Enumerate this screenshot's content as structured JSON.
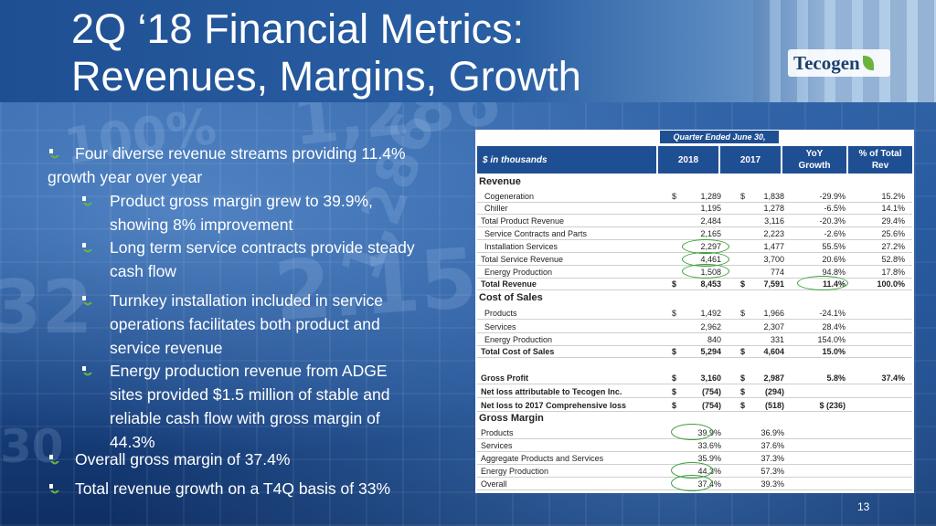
{
  "title": {
    "line1": "2Q ‘18 Financial Metrics:",
    "line2": "Revenues, Margins, Growth"
  },
  "logo": {
    "text": "Tecogen"
  },
  "bullets": [
    {
      "text": "Four diverse revenue streams providing 11.4%\ngrowth year over year",
      "level": 1
    },
    {
      "text": "Product gross margin grew to 39.9%,\nshowing 8% improvement",
      "level": 2
    },
    {
      "text": "Long term service contracts provide steady\ncash flow",
      "level": 2
    },
    {
      "text": "Turnkey installation included in service\noperations facilitates both product and\nservice revenue",
      "level": 2
    },
    {
      "text": "Energy production revenue from ADGE\nsites provided $1.5 million of stable and\nreliable cash flow with gross margin of\n44.3%",
      "level": 2
    },
    {
      "text": "Overall gross margin of 37.4%",
      "level": 1
    },
    {
      "text": "Total revenue growth on a T4Q basis of 33%",
      "level": 1
    }
  ],
  "table": {
    "quarter_header": "Quarter Ended June 30,",
    "columns": [
      "$ in thousands",
      "2018",
      "2017",
      "YoY\nGrowth",
      "% of Total\nRev"
    ],
    "sections": {
      "revenue": "Revenue",
      "cost_of_sales": "Cost of Sales",
      "gross_margin": "Gross Margin"
    },
    "revenue_rows": [
      {
        "label": "Cogeneration",
        "d1": "$",
        "y2018": "1,289",
        "d2": "$",
        "y2017": "1,838",
        "yoy": "-29.9%",
        "pct": "15.2%"
      },
      {
        "label": "Chiller",
        "d1": "",
        "y2018": "1,195",
        "d2": "",
        "y2017": "1,278",
        "yoy": "-6.5%",
        "pct": "14.1%"
      },
      {
        "label": "Total Product Revenue",
        "d1": "",
        "y2018": "2,484",
        "d2": "",
        "y2017": "3,116",
        "yoy": "-20.3%",
        "pct": "29.4%"
      },
      {
        "label": "Service Contracts and Parts",
        "d1": "",
        "y2018": "2,165",
        "d2": "",
        "y2017": "2,223",
        "yoy": "-2.6%",
        "pct": "25.6%"
      },
      {
        "label": "Installation Services",
        "d1": "",
        "y2018": "2,297",
        "d2": "",
        "y2017": "1,477",
        "yoy": "55.5%",
        "pct": "27.2%"
      },
      {
        "label": "Total Service Revenue",
        "d1": "",
        "y2018": "4,461",
        "d2": "",
        "y2017": "3,700",
        "yoy": "20.6%",
        "pct": "52.8%"
      },
      {
        "label": "Energy Production",
        "d1": "",
        "y2018": "1,508",
        "d2": "",
        "y2017": "774",
        "yoy": "94.8%",
        "pct": "17.8%"
      },
      {
        "label": "Total Revenue",
        "d1": "$",
        "y2018": "8,453",
        "d2": "$",
        "y2017": "7,591",
        "yoy": "11.4%",
        "pct": "100.0%",
        "bold": true
      }
    ],
    "cost_rows": [
      {
        "label": "Products",
        "d1": "$",
        "y2018": "1,492",
        "d2": "$",
        "y2017": "1,966",
        "yoy": "-24.1%",
        "pct": ""
      },
      {
        "label": "Services",
        "d1": "",
        "y2018": "2,962",
        "d2": "",
        "y2017": "2,307",
        "yoy": "28.4%",
        "pct": ""
      },
      {
        "label": "Energy Production",
        "d1": "",
        "y2018": "840",
        "d2": "",
        "y2017": "331",
        "yoy": "154.0%",
        "pct": ""
      },
      {
        "label": "Total Cost of Sales",
        "d1": "$",
        "y2018": "5,294",
        "d2": "$",
        "y2017": "4,604",
        "yoy": "15.0%",
        "pct": "",
        "bold": true
      }
    ],
    "profit_rows": [
      {
        "label": "Gross Profit",
        "d1": "$",
        "y2018": "3,160",
        "d2": "$",
        "y2017": "2,987",
        "yoy": "5.8%",
        "pct": "37.4%",
        "bold": true
      },
      {
        "label": "Net loss attributable to Tecogen Inc.",
        "d1": "$",
        "y2018": "(754)",
        "d2": "$",
        "y2017": "(294)",
        "yoy": "",
        "pct": "",
        "bold": true
      },
      {
        "label": "Net loss to 2017 Comprehensive loss",
        "d1": "$",
        "y2018": "(754)",
        "d2": "$",
        "y2017": "(518)",
        "yoy": "$  (236)",
        "pct": "",
        "bold": true
      }
    ],
    "margin_rows": [
      {
        "label": "Products",
        "y2018": "39.9%",
        "y2017": "36.9%"
      },
      {
        "label": "Services",
        "y2018": "33.6%",
        "y2017": "37.6%"
      },
      {
        "label": "Aggregate Products and Services",
        "y2018": "35.9%",
        "y2017": "37.3%"
      },
      {
        "label": "Energy Production",
        "y2018": "44.3%",
        "y2017": "57.3%"
      },
      {
        "label": "Overall",
        "y2018": "37.4%",
        "y2017": "39.3%"
      }
    ]
  },
  "page_number": "13",
  "colors": {
    "accent": "#1f4f93",
    "highlight": "#3aa03a",
    "bullet": "#6bb33f"
  },
  "background_numbers": [
    "100%",
    "1,286",
    "2.15",
    "32",
    "1,286",
    "30"
  ]
}
